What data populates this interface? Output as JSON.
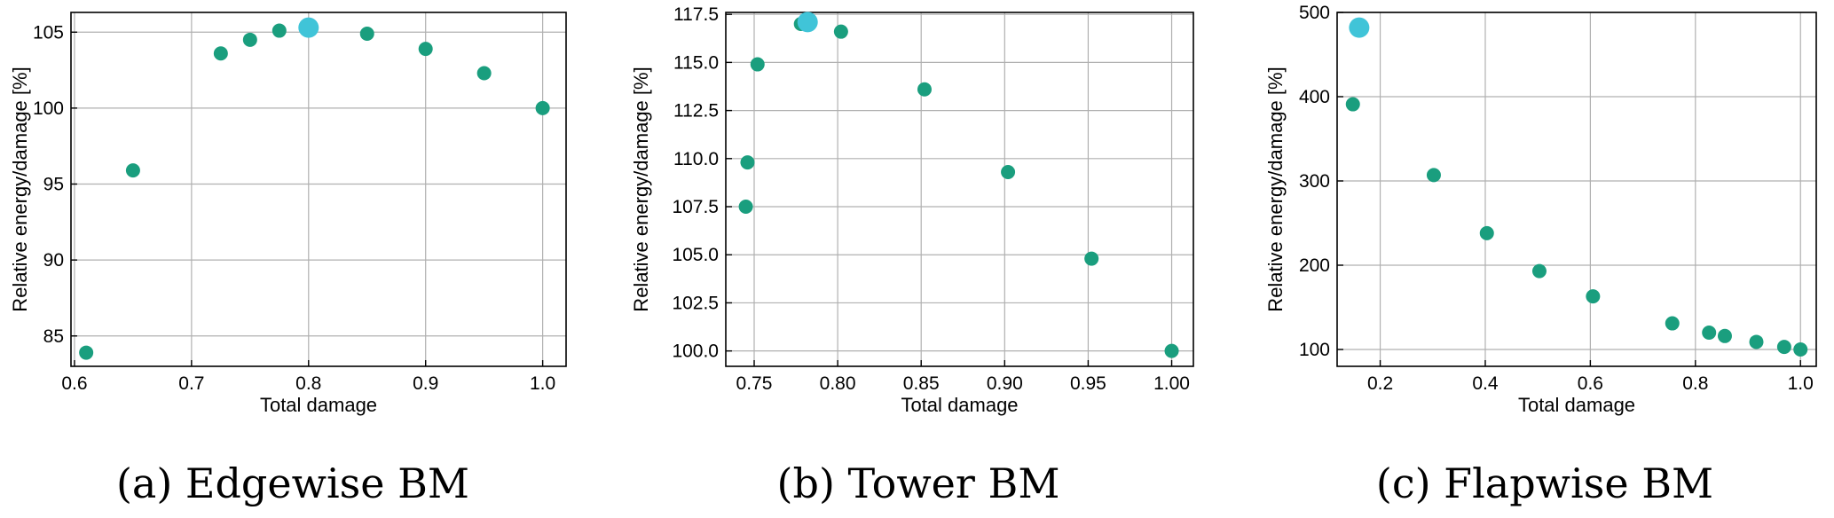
{
  "chart_data": [
    {
      "type": "scatter",
      "caption": "(a) Edgewise BM",
      "xlabel": "Total damage",
      "ylabel": "Relative energy/damage [%]",
      "xlim": [
        0.597,
        1.02
      ],
      "ylim": [
        83.0,
        106.3
      ],
      "xticks": [
        0.6,
        0.7,
        0.8,
        0.9,
        1.0
      ],
      "xtick_labels": [
        "0.6",
        "0.7",
        "0.8",
        "0.9",
        "1.0"
      ],
      "yticks": [
        85,
        90,
        95,
        100,
        105
      ],
      "ytick_labels": [
        "85",
        "90",
        "95",
        "100",
        "105"
      ],
      "grid": true,
      "marker_color": "#1a9e7e",
      "highlight_color": "#40c4d8",
      "points": [
        {
          "x": 0.61,
          "y": 83.9
        },
        {
          "x": 0.65,
          "y": 95.9
        },
        {
          "x": 0.725,
          "y": 103.6
        },
        {
          "x": 0.75,
          "y": 104.5
        },
        {
          "x": 0.775,
          "y": 105.1
        },
        {
          "x": 0.85,
          "y": 104.9
        },
        {
          "x": 0.9,
          "y": 103.9
        },
        {
          "x": 0.95,
          "y": 102.3
        },
        {
          "x": 1.0,
          "y": 100.0
        }
      ],
      "highlight": {
        "x": 0.8,
        "y": 105.3
      }
    },
    {
      "type": "scatter",
      "caption": "(b) Tower BM",
      "xlabel": "Total damage",
      "ylabel": "Relative energy/damage [%]",
      "xlim": [
        0.733,
        1.013
      ],
      "ylim": [
        99.2,
        117.6
      ],
      "xticks": [
        0.75,
        0.8,
        0.85,
        0.9,
        0.95,
        1.0
      ],
      "xtick_labels": [
        "0.75",
        "0.80",
        "0.85",
        "0.90",
        "0.95",
        "1.00"
      ],
      "yticks": [
        100.0,
        102.5,
        105.0,
        107.5,
        110.0,
        112.5,
        115.0,
        117.5
      ],
      "ytick_labels": [
        "100.0",
        "102.5",
        "105.0",
        "107.5",
        "110.0",
        "112.5",
        "115.0",
        "117.5"
      ],
      "grid": true,
      "marker_color": "#1a9e7e",
      "highlight_color": "#40c4d8",
      "points": [
        {
          "x": 0.745,
          "y": 107.5
        },
        {
          "x": 0.746,
          "y": 109.8
        },
        {
          "x": 0.752,
          "y": 114.9
        },
        {
          "x": 0.778,
          "y": 117.0
        },
        {
          "x": 0.802,
          "y": 116.6
        },
        {
          "x": 0.852,
          "y": 113.6
        },
        {
          "x": 0.902,
          "y": 109.3
        },
        {
          "x": 0.952,
          "y": 104.8
        },
        {
          "x": 1.0,
          "y": 100.0
        }
      ],
      "highlight": {
        "x": 0.782,
        "y": 117.1
      }
    },
    {
      "type": "scatter",
      "caption": "(c) Flapwise BM",
      "xlabel": "Total damage",
      "ylabel": "Relative energy/damage [%]",
      "xlim": [
        0.118,
        1.03
      ],
      "ylim": [
        80,
        500
      ],
      "xticks": [
        0.2,
        0.4,
        0.6,
        0.8,
        1.0
      ],
      "xtick_labels": [
        "0.2",
        "0.4",
        "0.6",
        "0.8",
        "1.0"
      ],
      "yticks": [
        100,
        200,
        300,
        400,
        500
      ],
      "ytick_labels": [
        "100",
        "200",
        "300",
        "400",
        "500"
      ],
      "grid": true,
      "marker_color": "#1a9e7e",
      "highlight_color": "#40c4d8",
      "points": [
        {
          "x": 0.148,
          "y": 391
        },
        {
          "x": 0.302,
          "y": 307
        },
        {
          "x": 0.403,
          "y": 238
        },
        {
          "x": 0.503,
          "y": 193
        },
        {
          "x": 0.605,
          "y": 163
        },
        {
          "x": 0.756,
          "y": 131
        },
        {
          "x": 0.826,
          "y": 120
        },
        {
          "x": 0.856,
          "y": 116
        },
        {
          "x": 0.916,
          "y": 109
        },
        {
          "x": 0.969,
          "y": 103
        },
        {
          "x": 1.0,
          "y": 100
        }
      ],
      "highlight": {
        "x": 0.16,
        "y": 482
      }
    }
  ]
}
